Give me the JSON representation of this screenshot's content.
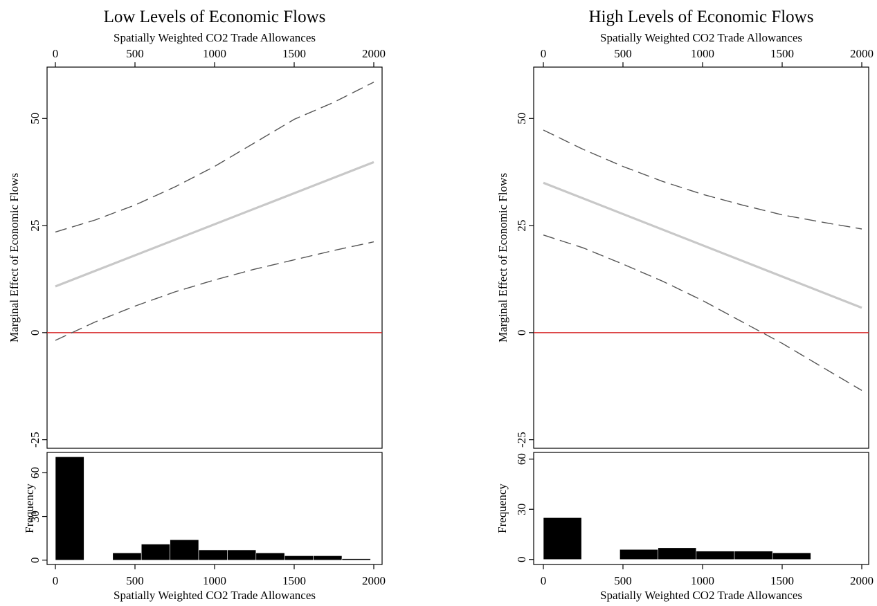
{
  "chart_data": [
    {
      "type": "line",
      "title": "Low Levels of Economic Flows",
      "top_axis_label": "Spatially Weighted CO2 Trade Allowances",
      "xlabel": "Spatially Weighted CO2 Trade Allowances",
      "ylabel": "Marginal Effect of Economic Flows",
      "xlim": [
        0,
        2000
      ],
      "ylim": [
        -27,
        62
      ],
      "x_ticks": [
        0,
        500,
        1000,
        1500,
        2000
      ],
      "y_ticks": [
        -25,
        0,
        25,
        50
      ],
      "reference_line": {
        "y": 0,
        "color": "#d62728"
      },
      "series": [
        {
          "role": "estimate",
          "style": "solid",
          "color": "#c8c8c8",
          "x": [
            0,
            2000
          ],
          "y": [
            10.8,
            39.8
          ]
        },
        {
          "role": "upper_bound",
          "style": "dashed",
          "color": "#555555",
          "x": [
            0,
            250,
            500,
            750,
            1000,
            1250,
            1500,
            1750,
            2000
          ],
          "y": [
            23.5,
            26.3,
            29.8,
            34.0,
            38.8,
            44.3,
            49.8,
            53.8,
            58.5
          ]
        },
        {
          "role": "lower_bound",
          "style": "dashed",
          "color": "#555555",
          "x": [
            0,
            250,
            500,
            750,
            1000,
            1250,
            1500,
            1750,
            2000
          ],
          "y": [
            -1.8,
            2.5,
            6.2,
            9.5,
            12.3,
            14.8,
            17.0,
            19.2,
            21.2
          ]
        }
      ],
      "histogram": {
        "ylabel": "Frequency",
        "xlabel": "Spatially Weighted CO2 Trade Allowances",
        "y_ticks": [
          0,
          30,
          60
        ],
        "ylim": [
          -3,
          74
        ],
        "color": "#000000",
        "bins": [
          {
            "x0": 0,
            "x1": 180,
            "count": 71
          },
          {
            "x0": 360,
            "x1": 540,
            "count": 5
          },
          {
            "x0": 540,
            "x1": 720,
            "count": 11
          },
          {
            "x0": 720,
            "x1": 900,
            "count": 14
          },
          {
            "x0": 900,
            "x1": 1080,
            "count": 7
          },
          {
            "x0": 1080,
            "x1": 1260,
            "count": 7
          },
          {
            "x0": 1260,
            "x1": 1440,
            "count": 5
          },
          {
            "x0": 1440,
            "x1": 1620,
            "count": 3
          },
          {
            "x0": 1620,
            "x1": 1800,
            "count": 3
          },
          {
            "x0": 1800,
            "x1": 1980,
            "count": 1
          }
        ]
      }
    },
    {
      "type": "line",
      "title": "High Levels of Economic Flows",
      "top_axis_label": "Spatially Weighted CO2 Trade Allowances",
      "xlabel": "Spatially Weighted CO2 Trade Allowances",
      "ylabel": "Marginal Effect of Economic Flows",
      "xlim": [
        0,
        2000
      ],
      "ylim": [
        -27,
        62
      ],
      "x_ticks": [
        0,
        500,
        1000,
        1500,
        2000
      ],
      "y_ticks": [
        -25,
        0,
        25,
        50
      ],
      "reference_line": {
        "y": 0,
        "color": "#d62728"
      },
      "series": [
        {
          "role": "estimate",
          "style": "solid",
          "color": "#c8c8c8",
          "x": [
            0,
            2000
          ],
          "y": [
            35.0,
            5.8
          ]
        },
        {
          "role": "upper_bound",
          "style": "dashed",
          "color": "#555555",
          "x": [
            0,
            250,
            500,
            750,
            1000,
            1250,
            1500,
            1750,
            2000
          ],
          "y": [
            47.3,
            42.8,
            38.8,
            35.3,
            32.3,
            29.8,
            27.5,
            25.8,
            24.2
          ]
        },
        {
          "role": "lower_bound",
          "style": "dashed",
          "color": "#555555",
          "x": [
            0,
            250,
            500,
            750,
            1000,
            1250,
            1500,
            1750,
            2000
          ],
          "y": [
            22.8,
            19.8,
            16.0,
            12.0,
            7.5,
            2.5,
            -2.5,
            -8.0,
            -13.5
          ]
        }
      ],
      "histogram": {
        "ylabel": "Frequency",
        "xlabel": "Spatially Weighted CO2 Trade Allowances",
        "y_ticks": [
          0,
          30,
          60
        ],
        "ylim": [
          -3,
          64
        ],
        "color": "#000000",
        "bins": [
          {
            "x0": 0,
            "x1": 240,
            "count": 25
          },
          {
            "x0": 480,
            "x1": 720,
            "count": 6
          },
          {
            "x0": 720,
            "x1": 960,
            "count": 7
          },
          {
            "x0": 960,
            "x1": 1200,
            "count": 5
          },
          {
            "x0": 1200,
            "x1": 1440,
            "count": 5
          },
          {
            "x0": 1440,
            "x1": 1680,
            "count": 4
          }
        ]
      }
    }
  ]
}
